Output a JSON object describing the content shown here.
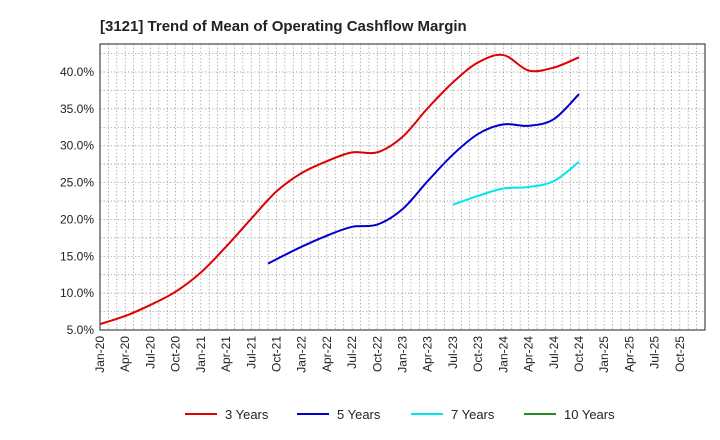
{
  "chart_data": {
    "type": "line",
    "title": "[3121]  Trend of Mean of Operating Cashflow Margin",
    "xlabel": "",
    "ylabel": "",
    "x_ticks": [
      "Jan-20",
      "Apr-20",
      "Jul-20",
      "Oct-20",
      "Jan-21",
      "Apr-21",
      "Jul-21",
      "Oct-21",
      "Jan-22",
      "Apr-22",
      "Jul-22",
      "Oct-22",
      "Jan-23",
      "Apr-23",
      "Jul-23",
      "Oct-23",
      "Jan-24",
      "Apr-24",
      "Jul-24",
      "Oct-24",
      "Jan-25",
      "Apr-25",
      "Jul-25",
      "Oct-25"
    ],
    "y_ticks": [
      "5.0%",
      "10.0%",
      "15.0%",
      "20.0%",
      "25.0%",
      "30.0%",
      "35.0%",
      "40.0%"
    ],
    "ylim": [
      5.0,
      43.8
    ],
    "xlim": [
      "Jan-20",
      "Oct-25"
    ],
    "grid": true,
    "legend_position": "bottom",
    "series": [
      {
        "name": "3 Years",
        "color": "#e00000",
        "points": [
          [
            "Jan-20",
            5.8
          ],
          [
            "Apr-20",
            6.9
          ],
          [
            "Jul-20",
            8.4
          ],
          [
            "Oct-20",
            10.2
          ],
          [
            "Jan-21",
            12.8
          ],
          [
            "Apr-21",
            16.3
          ],
          [
            "Jul-21",
            20.1
          ],
          [
            "Oct-21",
            23.8
          ],
          [
            "Jan-22",
            26.3
          ],
          [
            "Apr-22",
            27.9
          ],
          [
            "Jul-22",
            29.1
          ],
          [
            "Oct-22",
            29.1
          ],
          [
            "Jan-23",
            31.2
          ],
          [
            "Apr-23",
            35.1
          ],
          [
            "Jul-23",
            38.6
          ],
          [
            "Oct-23",
            41.3
          ],
          [
            "Jan-24",
            42.3
          ],
          [
            "Apr-24",
            40.2
          ],
          [
            "Jul-24",
            40.6
          ],
          [
            "Oct-24",
            42.0
          ]
        ]
      },
      {
        "name": "5 Years",
        "color": "#0000cc",
        "points": [
          [
            "Sep-21",
            14.0
          ],
          [
            "Oct-21",
            14.6
          ],
          [
            "Jan-22",
            16.3
          ],
          [
            "Apr-22",
            17.8
          ],
          [
            "Jul-22",
            19.0
          ],
          [
            "Oct-22",
            19.3
          ],
          [
            "Jan-23",
            21.4
          ],
          [
            "Apr-23",
            25.2
          ],
          [
            "Jul-23",
            28.8
          ],
          [
            "Oct-23",
            31.6
          ],
          [
            "Jan-24",
            32.9
          ],
          [
            "Apr-24",
            32.7
          ],
          [
            "Jul-24",
            33.6
          ],
          [
            "Oct-24",
            37.0
          ]
        ]
      },
      {
        "name": "7 Years",
        "color": "#00e5ee",
        "points": [
          [
            "Jul-23",
            22.0
          ],
          [
            "Oct-23",
            23.2
          ],
          [
            "Jan-24",
            24.2
          ],
          [
            "Apr-24",
            24.4
          ],
          [
            "Jul-24",
            25.2
          ],
          [
            "Oct-24",
            27.8
          ]
        ]
      },
      {
        "name": "10 Years",
        "color": "#228b22",
        "points": []
      }
    ]
  }
}
